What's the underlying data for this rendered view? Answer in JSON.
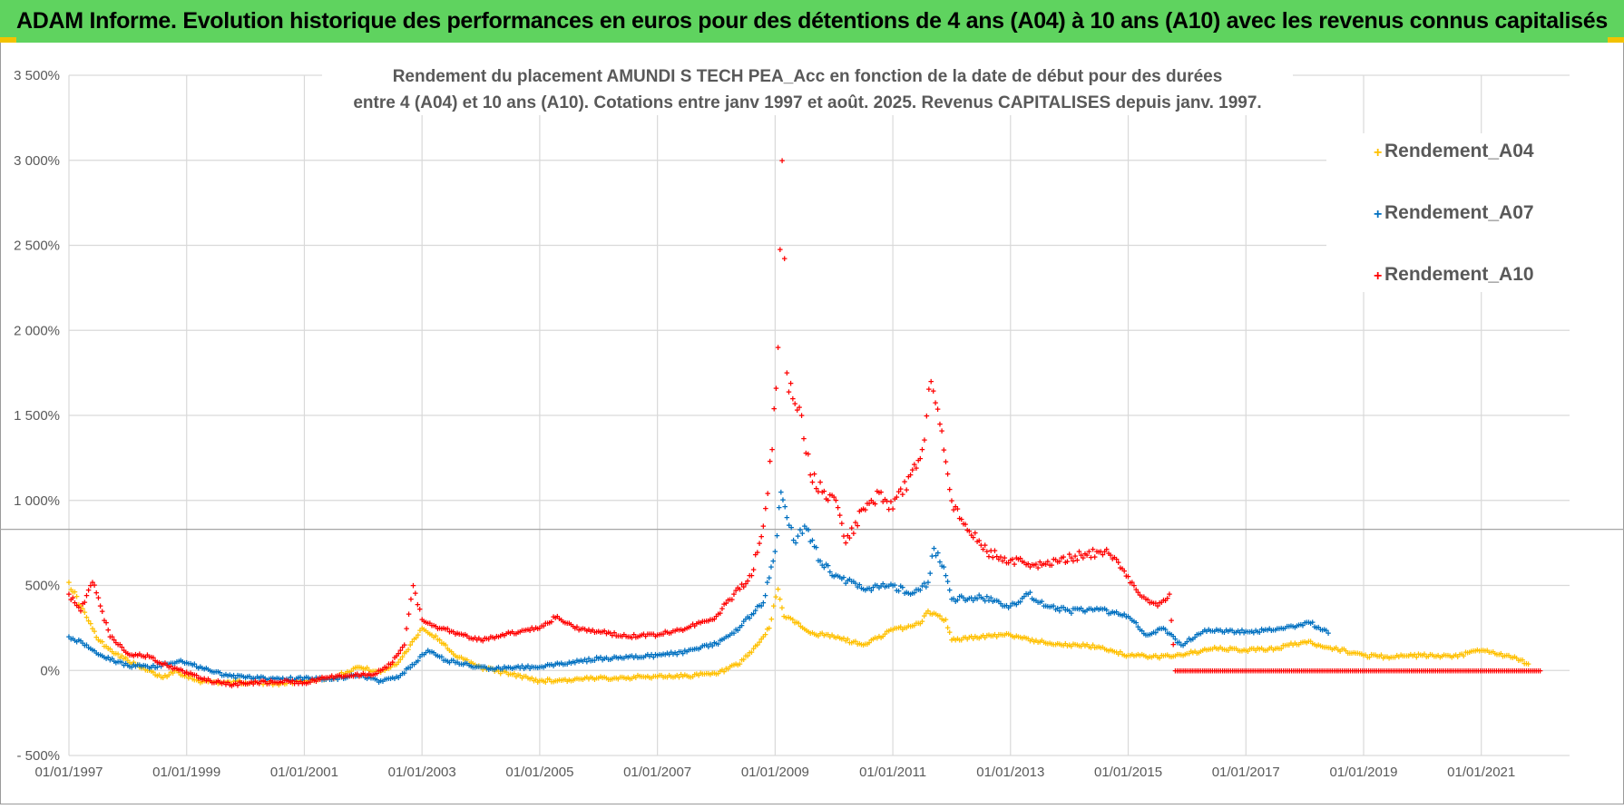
{
  "banner": {
    "title": "ADAM Informe. Evolution historique des performances en euros pour des détentions de 4 ans (A04) à 10 ans (A10) avec les revenus connus capitalisés"
  },
  "colors": {
    "banner": "#5fd35f",
    "A04": "#ffc000",
    "A07": "#0070c0",
    "A10": "#ff0000",
    "grid": "#d9d9d9"
  },
  "chart_data": {
    "type": "scatter",
    "title_line1": "Rendement du placement AMUNDI S TECH PEA_Acc en fonction de la date de début pour des durées",
    "title_line2": "entre 4 (A04) et 10 ans (A10).  Cotations entre janv 1997 et août. 2025. Revenus CAPITALISES depuis janv. 1997.",
    "xlabel": "",
    "ylabel": "",
    "ylim": [
      -500,
      3500
    ],
    "xlim": [
      1997.0,
      2022.5
    ],
    "yticks": [
      -500,
      0,
      500,
      1000,
      1500,
      2000,
      2500,
      3000,
      3500
    ],
    "ytick_labels": [
      "- 500%",
      "0%",
      "500%",
      "1 000%",
      "1 500%",
      "2 000%",
      "2 500%",
      "3 000%",
      "3 500%"
    ],
    "xticks": [
      1997,
      1999,
      2001,
      2003,
      2005,
      2007,
      2009,
      2011,
      2013,
      2015,
      2017,
      2019,
      2021
    ],
    "xtick_labels": [
      "01/01/1997",
      "01/01/1999",
      "01/01/2001",
      "01/01/2003",
      "01/01/2005",
      "01/01/2007",
      "01/01/2009",
      "01/01/2011",
      "01/01/2013",
      "01/01/2015",
      "01/01/2017",
      "01/01/2019",
      "01/01/2021"
    ],
    "grid": true,
    "legend_position": "top-right",
    "marker": "+",
    "series": [
      {
        "name": "Rendement_A04",
        "x": [
          1997.0,
          1997.2,
          1997.5,
          1997.8,
          1998.2,
          1998.6,
          1998.8,
          1999.2,
          1999.6,
          2000.0,
          2000.5,
          2001.0,
          2001.5,
          2001.9,
          2002.3,
          2002.6,
          2002.8,
          2003.0,
          2003.3,
          2003.6,
          2004.0,
          2004.5,
          2005.0,
          2005.5,
          2006.0,
          2006.5,
          2007.0,
          2007.5,
          2008.0,
          2008.4,
          2008.7,
          2008.9,
          2009.05,
          2009.15,
          2009.3,
          2009.6,
          2010.0,
          2010.5,
          2011.0,
          2011.3,
          2011.5,
          2011.6,
          2011.9,
          2012.0,
          2012.5,
          2013.0,
          2013.5,
          2014.0,
          2014.5,
          2015.0,
          2015.5,
          2016.0,
          2016.5,
          2017.0,
          2017.5,
          2018.0,
          2018.5,
          2019.0,
          2019.5,
          2020.0,
          2020.5,
          2021.0,
          2021.5,
          2021.8
        ],
        "y": [
          520,
          380,
          180,
          100,
          20,
          -40,
          0,
          -60,
          -70,
          -70,
          -75,
          -60,
          -40,
          20,
          -10,
          50,
          150,
          250,
          180,
          80,
          20,
          -20,
          -60,
          -55,
          -45,
          -40,
          -35,
          -30,
          -20,
          40,
          150,
          250,
          480,
          320,
          300,
          220,
          200,
          150,
          240,
          260,
          290,
          350,
          300,
          180,
          200,
          210,
          170,
          150,
          140,
          90,
          80,
          100,
          130,
          120,
          130,
          170,
          130,
          90,
          80,
          90,
          80,
          120,
          80,
          40
        ]
      },
      {
        "name": "Rendement_A07",
        "x": [
          1997.0,
          1997.3,
          1997.6,
          1998.0,
          1998.4,
          1998.7,
          1998.9,
          1999.3,
          1999.7,
          2000.0,
          2000.5,
          2001.0,
          2001.5,
          2001.9,
          2002.3,
          2002.6,
          2002.9,
          2003.1,
          2003.4,
          2003.8,
          2004.2,
          2004.6,
          2005.0,
          2005.5,
          2006.0,
          2006.5,
          2007.0,
          2007.5,
          2008.0,
          2008.3,
          2008.6,
          2008.8,
          2009.0,
          2009.1,
          2009.2,
          2009.35,
          2009.5,
          2009.8,
          2010.1,
          2010.5,
          2011.0,
          2011.3,
          2011.6,
          2011.7,
          2011.9,
          2012.0,
          2012.5,
          2013.0,
          2013.3,
          2013.6,
          2014.0,
          2014.5,
          2015.0,
          2015.3,
          2015.6,
          2015.9,
          2016.3,
          2016.7,
          2017.0,
          2017.5,
          2017.8,
          2018.1,
          2018.4
        ],
        "y": [
          200,
          150,
          80,
          30,
          20,
          40,
          60,
          10,
          -30,
          -40,
          -50,
          -45,
          -50,
          -30,
          -60,
          -40,
          50,
          120,
          60,
          30,
          10,
          20,
          20,
          50,
          70,
          80,
          90,
          110,
          160,
          220,
          330,
          400,
          700,
          1050,
          900,
          750,
          850,
          620,
          550,
          480,
          500,
          450,
          520,
          720,
          560,
          420,
          430,
          380,
          450,
          380,
          350,
          360,
          320,
          210,
          250,
          150,
          240,
          230,
          230,
          240,
          260,
          280,
          220
        ]
      },
      {
        "name": "Rendement_A10",
        "x": [
          1997.0,
          1997.2,
          1997.4,
          1997.7,
          1998.0,
          1998.4,
          1998.7,
          1999.0,
          1999.4,
          1999.8,
          2000.2,
          2000.6,
          2001.0,
          2001.4,
          2001.8,
          2002.2,
          2002.5,
          2002.7,
          2002.85,
          2003.0,
          2003.3,
          2003.6,
          2004.0,
          2004.5,
          2005.0,
          2005.3,
          2005.6,
          2006.0,
          2006.5,
          2007.0,
          2007.5,
          2008.0,
          2008.3,
          2008.6,
          2008.8,
          2008.95,
          2009.05,
          2009.12,
          2009.2,
          2009.3,
          2009.45,
          2009.6,
          2009.8,
          2010.0,
          2010.2,
          2010.5,
          2010.8,
          2011.0,
          2011.3,
          2011.5,
          2011.65,
          2011.8,
          2012.0,
          2012.3,
          2012.6,
          2013.0,
          2013.4,
          2013.8,
          2014.2,
          2014.6,
          2014.9,
          2015.1,
          2015.3,
          2015.5,
          2015.7,
          2015.8,
          2016.5,
          2017.5,
          2018.5,
          2019.5,
          2020.5,
          2021.5,
          2022.0
        ],
        "y": [
          450,
          350,
          520,
          200,
          100,
          80,
          20,
          -10,
          -60,
          -80,
          -70,
          -65,
          -70,
          -40,
          -30,
          -20,
          50,
          150,
          500,
          300,
          250,
          220,
          180,
          220,
          250,
          320,
          250,
          230,
          200,
          210,
          250,
          320,
          450,
          560,
          850,
          1300,
          1900,
          3000,
          1750,
          1600,
          1500,
          1150,
          1050,
          1020,
          750,
          950,
          1050,
          950,
          1150,
          1300,
          1700,
          1450,
          1000,
          820,
          700,
          650,
          620,
          640,
          680,
          700,
          600,
          500,
          420,
          380,
          450,
          0,
          0,
          0,
          0,
          0,
          0,
          0,
          0
        ]
      }
    ]
  }
}
